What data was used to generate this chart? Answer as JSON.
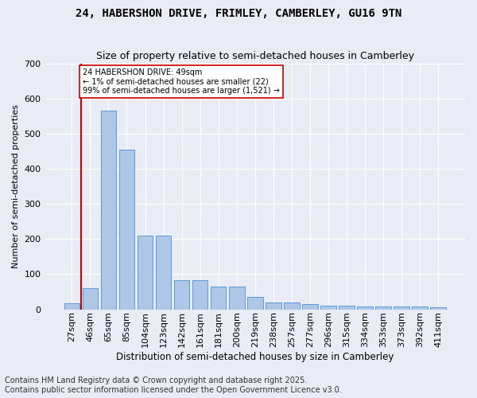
{
  "title": "24, HABERSHON DRIVE, FRIMLEY, CAMBERLEY, GU16 9TN",
  "subtitle": "Size of property relative to semi-detached houses in Camberley",
  "xlabel": "Distribution of semi-detached houses by size in Camberley",
  "ylabel": "Number of semi-detached properties",
  "categories": [
    "27sqm",
    "46sqm",
    "65sqm",
    "85sqm",
    "104sqm",
    "123sqm",
    "142sqm",
    "161sqm",
    "181sqm",
    "200sqm",
    "219sqm",
    "238sqm",
    "257sqm",
    "277sqm",
    "296sqm",
    "315sqm",
    "334sqm",
    "353sqm",
    "373sqm",
    "392sqm",
    "411sqm"
  ],
  "values": [
    18,
    60,
    565,
    455,
    210,
    210,
    82,
    82,
    65,
    65,
    35,
    20,
    20,
    15,
    10,
    10,
    7,
    7,
    7,
    7,
    5
  ],
  "bar_color": "#aec6e8",
  "bar_edge_color": "#5b9bd5",
  "vline_color": "#cc0000",
  "annotation_text": "24 HABERSHON DRIVE: 49sqm\n← 1% of semi-detached houses are smaller (22)\n99% of semi-detached houses are larger (1,521) →",
  "annotation_box_color": "#ffffff",
  "annotation_box_edge_color": "#cc0000",
  "ylim": [
    0,
    700
  ],
  "yticks": [
    0,
    100,
    200,
    300,
    400,
    500,
    600,
    700
  ],
  "bg_color": "#eaecf5",
  "plot_bg_color": "#eaecf5",
  "grid_color": "#ffffff",
  "footer": "Contains HM Land Registry data © Crown copyright and database right 2025.\nContains public sector information licensed under the Open Government Licence v3.0.",
  "title_fontsize": 10,
  "subtitle_fontsize": 9,
  "ylabel_fontsize": 8,
  "xlabel_fontsize": 8.5,
  "tick_fontsize": 8,
  "annotation_fontsize": 7,
  "footer_fontsize": 7
}
